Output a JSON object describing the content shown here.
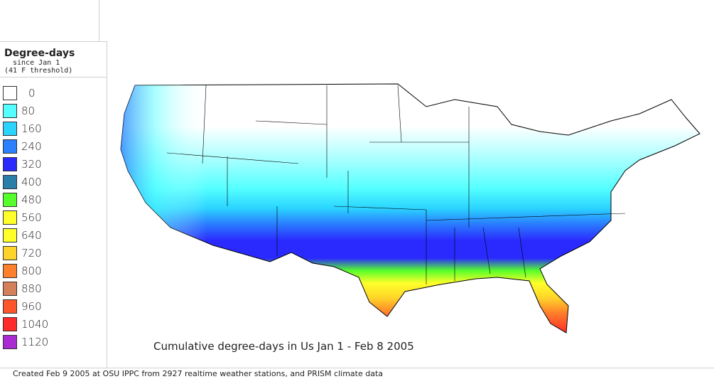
{
  "legend": {
    "title": "Degree-days",
    "subtitle1": "since Jan 1",
    "subtitle2": "(41 F threshold)",
    "items": [
      {
        "label": "0",
        "color": "#ffffff"
      },
      {
        "label": "80",
        "color": "#55ffff"
      },
      {
        "label": "160",
        "color": "#2ad4ff"
      },
      {
        "label": "240",
        "color": "#2a80ff"
      },
      {
        "label": "320",
        "color": "#2a2aff"
      },
      {
        "label": "400",
        "color": "#2a7faa"
      },
      {
        "label": "480",
        "color": "#55ff2a"
      },
      {
        "label": "560",
        "color": "#ffff2a"
      },
      {
        "label": "640",
        "color": "#ffff2a"
      },
      {
        "label": "720",
        "color": "#ffd42a"
      },
      {
        "label": "800",
        "color": "#ff802a"
      },
      {
        "label": "880",
        "color": "#d4805a"
      },
      {
        "label": "960",
        "color": "#ff552a"
      },
      {
        "label": "1040",
        "color": "#ff2a2a"
      },
      {
        "label": "1120",
        "color": "#aa2ad4"
      }
    ]
  },
  "map_title": "Cumulative degree-days in Us Jan 1 - Feb 8 2005",
  "footer": "Created Feb 9 2005 at OSU IPPC from 2927 realtime weather stations, and PRISM climate data"
}
